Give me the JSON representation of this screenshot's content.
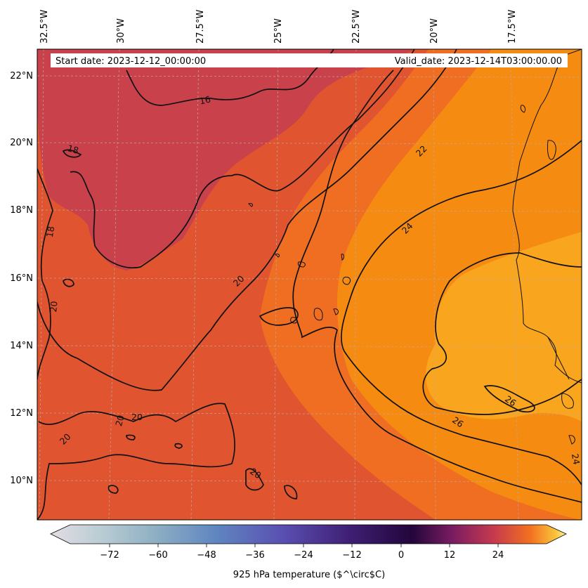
{
  "header": {
    "start_date": "Start date: 2023-12-12_00:00:00",
    "valid_date": "Valid_date: 2023-12-14T03:00:00.00"
  },
  "map": {
    "variable": "925 hPa temperature",
    "lon_labels": [
      "32.5°W",
      "30°W",
      "27.5°W",
      "25°W",
      "22.5°W",
      "20°W",
      "17.5°W"
    ],
    "lat_labels": [
      "22°N",
      "20°N",
      "18°N",
      "16°N",
      "14°N",
      "12°N",
      "10°N"
    ],
    "contour_labels": [
      "16",
      "18",
      "18",
      "20",
      "20",
      "20",
      "20",
      "20",
      "20",
      "22",
      "24",
      "24",
      "26",
      "26"
    ],
    "fill_colors": {
      "cool": "#c9414a",
      "mid": "#e0552f",
      "warm": "#f07a1a",
      "hot": "#f68e12",
      "hottest": "#f9a51d"
    }
  },
  "colorbar": {
    "label": "925 hPa temperature ($^\\circ$C)",
    "tick_labels": [
      "−72",
      "−60",
      "−48",
      "−36",
      "−24",
      "−12",
      "0",
      "12",
      "24"
    ],
    "range": [
      -84,
      30
    ],
    "colormap": [
      "#e3dde4",
      "#a9c4c8",
      "#5e86c0",
      "#5b4cb0",
      "#3e1c6c",
      "#2a0740",
      "#6d1a5e",
      "#b43356",
      "#e8572f",
      "#f9931a",
      "#fbe97a"
    ]
  }
}
